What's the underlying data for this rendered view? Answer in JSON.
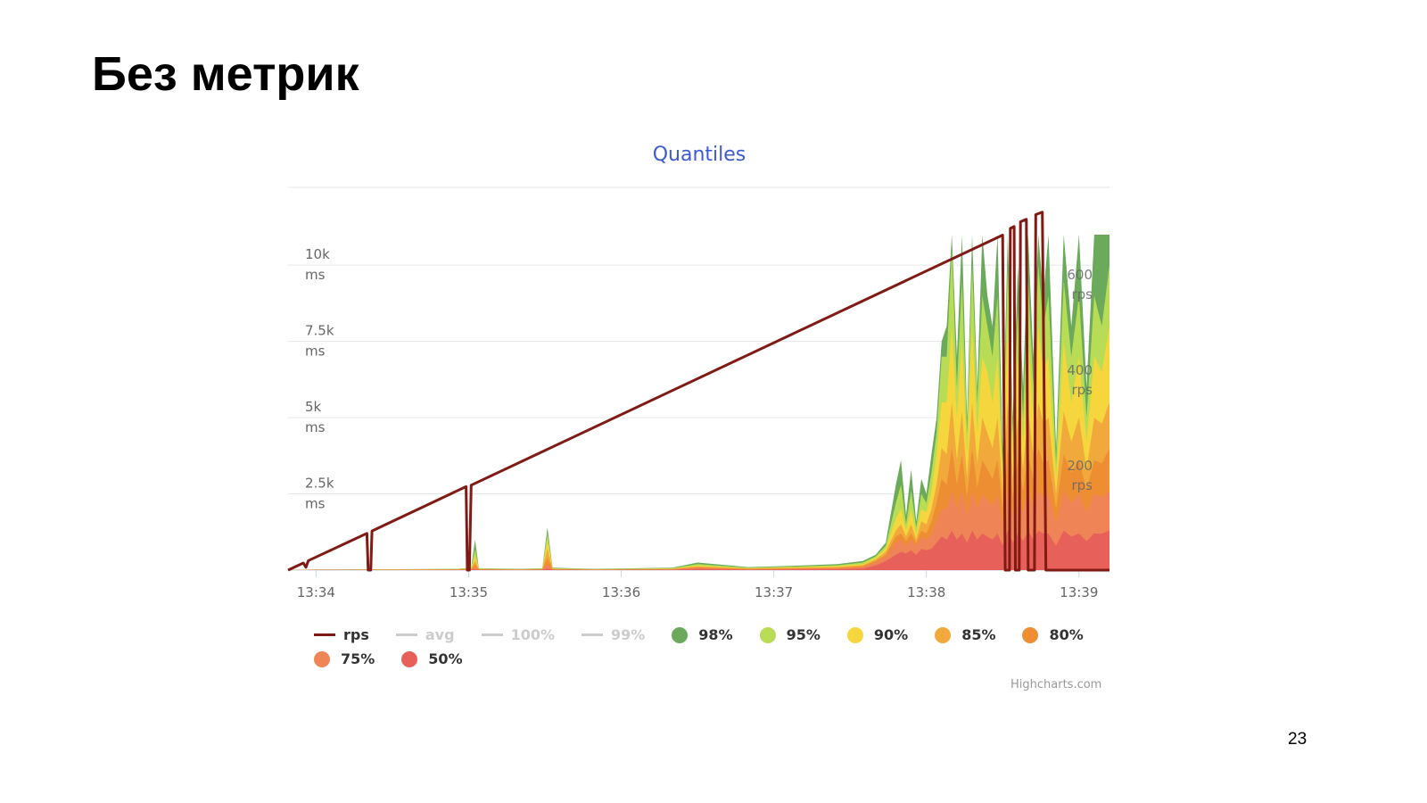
{
  "slide": {
    "title": "Без метрик",
    "page_number": "23"
  },
  "chart_data": {
    "type": "area",
    "title": "Quantiles",
    "credit": "Highcharts.com",
    "x_unit": "seconds since 13:34:00",
    "x_ticks": [
      {
        "t": 0,
        "label": "13:34"
      },
      {
        "t": 60,
        "label": "13:35"
      },
      {
        "t": 120,
        "label": "13:36"
      },
      {
        "t": 180,
        "label": "13:37"
      },
      {
        "t": 240,
        "label": "13:38"
      },
      {
        "t": 300,
        "label": "13:39"
      }
    ],
    "xlim": [
      -11,
      312
    ],
    "y_left": {
      "unit": "ms",
      "lim": [
        0,
        12550
      ],
      "ticks": [
        {
          "v": 2500,
          "l1": "2.5k",
          "l2": "ms"
        },
        {
          "v": 5000,
          "l1": "5k",
          "l2": "ms"
        },
        {
          "v": 7500,
          "l1": "7.5k",
          "l2": "ms"
        },
        {
          "v": 10000,
          "l1": "10k",
          "l2": "ms"
        }
      ]
    },
    "y_right": {
      "unit": "rps",
      "lim": [
        0,
        802
      ],
      "ticks": [
        {
          "v": 200,
          "l1": "200",
          "l2": "rps"
        },
        {
          "v": 400,
          "l1": "400",
          "l2": "rps"
        },
        {
          "v": 600,
          "l1": "600",
          "l2": "rps"
        }
      ]
    },
    "legend": [
      {
        "name": "rps",
        "kind": "line",
        "color": "#7f1a14",
        "visible": true
      },
      {
        "name": "avg",
        "kind": "line",
        "color": "#cccccc",
        "visible": false
      },
      {
        "name": "100%",
        "kind": "line",
        "color": "#cccccc",
        "visible": false
      },
      {
        "name": "99%",
        "kind": "line",
        "color": "#cccccc",
        "visible": false
      },
      {
        "name": "98%",
        "kind": "dot",
        "color": "#6aaa5a",
        "visible": true
      },
      {
        "name": "95%",
        "kind": "dot",
        "color": "#b8dc55",
        "visible": true
      },
      {
        "name": "90%",
        "kind": "dot",
        "color": "#f5d63d",
        "visible": true
      },
      {
        "name": "85%",
        "kind": "dot",
        "color": "#f0a93a",
        "visible": true
      },
      {
        "name": "80%",
        "kind": "dot",
        "color": "#ee8e32",
        "visible": true
      },
      {
        "name": "75%",
        "kind": "dot",
        "color": "#ef8557",
        "visible": true
      },
      {
        "name": "50%",
        "kind": "dot",
        "color": "#e8605a",
        "visible": true
      }
    ],
    "x": [
      -11,
      0,
      30,
      55,
      61,
      62.5,
      64,
      80,
      89,
      91,
      93,
      110,
      140,
      150,
      170,
      190,
      205,
      215,
      220,
      224,
      228,
      230,
      232,
      234,
      236,
      238,
      240,
      242,
      244,
      246,
      248,
      250,
      252,
      254,
      256,
      258,
      260,
      262,
      264,
      266,
      268,
      270,
      272,
      274,
      276,
      278,
      280,
      282,
      284,
      286,
      288,
      291,
      294,
      297,
      300,
      303,
      306,
      309,
      312
    ],
    "series": [
      {
        "name": "98%",
        "color": "#6aaa5a",
        "values": [
          0,
          20,
          30,
          40,
          80,
          1000,
          60,
          40,
          60,
          1400,
          80,
          40,
          80,
          250,
          100,
          150,
          200,
          300,
          500,
          900,
          2800,
          3600,
          1800,
          3300,
          1600,
          3000,
          2500,
          3800,
          5000,
          7500,
          8000,
          11000,
          7000,
          11000,
          5000,
          11000,
          6000,
          11000,
          9000,
          8000,
          11000,
          4000,
          11000,
          5000,
          10000,
          6000,
          11000,
          7000,
          11000,
          9000,
          11000,
          4000,
          11000,
          8000,
          11000,
          6000,
          11000,
          11000,
          11000
        ]
      },
      {
        "name": "95%",
        "color": "#b8dc55",
        "values": [
          0,
          15,
          25,
          35,
          60,
          700,
          50,
          30,
          50,
          1200,
          60,
          30,
          60,
          200,
          80,
          120,
          160,
          250,
          450,
          800,
          2200,
          2800,
          1500,
          2600,
          1400,
          2500,
          2200,
          3200,
          4500,
          7000,
          7000,
          10500,
          6000,
          9500,
          4500,
          10000,
          5500,
          9000,
          8000,
          7000,
          9000,
          3500,
          10000,
          4500,
          8500,
          5000,
          9500,
          6000,
          10000,
          8000,
          9000,
          3500,
          9500,
          7000,
          9000,
          5000,
          9000,
          8000,
          10000
        ]
      },
      {
        "name": "90%",
        "color": "#f5d63d",
        "values": [
          0,
          12,
          20,
          30,
          50,
          500,
          40,
          25,
          40,
          1000,
          50,
          25,
          50,
          150,
          60,
          100,
          130,
          200,
          400,
          700,
          1700,
          2000,
          1300,
          2000,
          1200,
          2000,
          1900,
          2600,
          3800,
          5500,
          5500,
          8000,
          5000,
          7500,
          3800,
          8000,
          4500,
          7000,
          6500,
          5500,
          7000,
          3000,
          8000,
          3800,
          7000,
          4200,
          7500,
          5000,
          8000,
          6500,
          7000,
          3000,
          7500,
          5500,
          7000,
          4200,
          7000,
          6500,
          8000
        ]
      },
      {
        "name": "85%",
        "color": "#f0a93a",
        "values": [
          0,
          10,
          15,
          25,
          40,
          300,
          30,
          20,
          30,
          700,
          40,
          20,
          40,
          120,
          50,
          80,
          100,
          160,
          350,
          600,
          1300,
          1500,
          1100,
          1500,
          1000,
          1600,
          1500,
          2000,
          2800,
          4000,
          3800,
          5500,
          3600,
          5200,
          3000,
          5500,
          3500,
          5000,
          4500,
          4000,
          5000,
          2500,
          5500,
          3000,
          5000,
          3300,
          5200,
          3800,
          5500,
          4800,
          5000,
          2500,
          5200,
          4200,
          5000,
          3300,
          5000,
          4800,
          5500
        ]
      },
      {
        "name": "80%",
        "color": "#ee8e32",
        "values": [
          0,
          8,
          12,
          20,
          30,
          200,
          25,
          15,
          25,
          400,
          30,
          15,
          30,
          100,
          40,
          60,
          80,
          130,
          300,
          500,
          1100,
          1200,
          950,
          1200,
          900,
          1300,
          1200,
          1600,
          2200,
          3000,
          2800,
          4000,
          2800,
          3800,
          2400,
          4000,
          2700,
          3600,
          3300,
          3000,
          3600,
          2000,
          4000,
          2400,
          3600,
          2600,
          3800,
          3000,
          4000,
          3500,
          3600,
          2000,
          3800,
          3200,
          3600,
          2600,
          3600,
          3500,
          4000
        ]
      },
      {
        "name": "75%",
        "color": "#ef8557",
        "values": [
          0,
          6,
          10,
          15,
          25,
          100,
          20,
          12,
          20,
          200,
          25,
          12,
          25,
          80,
          30,
          50,
          60,
          100,
          250,
          450,
          900,
          1000,
          800,
          1000,
          800,
          1100,
          1000,
          1200,
          1600,
          2000,
          2000,
          2600,
          2000,
          2600,
          1800,
          2600,
          2000,
          2500,
          2300,
          2100,
          2500,
          1500,
          2600,
          1800,
          2500,
          1900,
          2600,
          2100,
          2600,
          2400,
          2500,
          1500,
          2600,
          2200,
          2500,
          1900,
          2500,
          2400,
          2600
        ]
      },
      {
        "name": "50%",
        "color": "#e8605a",
        "values": [
          0,
          3,
          5,
          8,
          10,
          30,
          10,
          6,
          10,
          50,
          12,
          6,
          12,
          40,
          15,
          25,
          30,
          50,
          150,
          300,
          500,
          600,
          550,
          650,
          500,
          700,
          650,
          700,
          900,
          1100,
          1000,
          1300,
          1000,
          1200,
          900,
          1300,
          1000,
          1200,
          1100,
          1000,
          1200,
          800,
          1300,
          900,
          1200,
          950,
          1300,
          1000,
          1300,
          1200,
          1200,
          800,
          1300,
          1100,
          1200,
          950,
          1200,
          1200,
          1300
        ]
      }
    ],
    "rps": {
      "name": "rps",
      "color": "#7f1a14",
      "points": [
        [
          -11,
          0
        ],
        [
          -5,
          15
        ],
        [
          -4,
          6
        ],
        [
          -3,
          20
        ],
        [
          20,
          77
        ],
        [
          20.5,
          0
        ],
        [
          21.5,
          0
        ],
        [
          22,
          82
        ],
        [
          59,
          175
        ],
        [
          59.5,
          0
        ],
        [
          60.3,
          0
        ],
        [
          61,
          178
        ],
        [
          270,
          702
        ],
        [
          271,
          0
        ],
        [
          272.7,
          0
        ],
        [
          273,
          716
        ],
        [
          274.5,
          720
        ],
        [
          275,
          0
        ],
        [
          276.5,
          0
        ],
        [
          277,
          730
        ],
        [
          279.3,
          735
        ],
        [
          280,
          0
        ],
        [
          282.5,
          0
        ],
        [
          283,
          745
        ],
        [
          285.6,
          750
        ],
        [
          287,
          0
        ],
        [
          312,
          0
        ]
      ]
    }
  }
}
